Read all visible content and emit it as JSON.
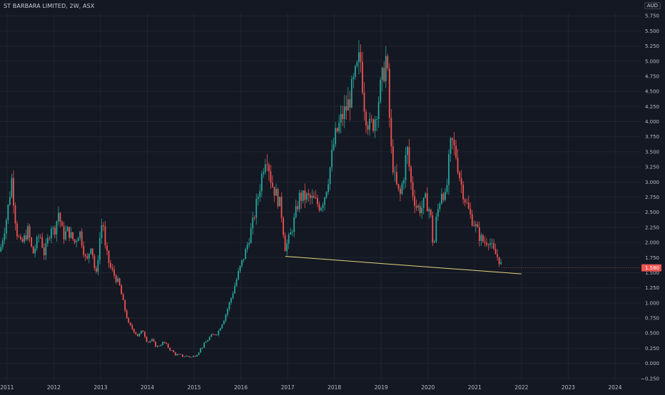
{
  "header": {
    "title": "ST BARBARA LIMITED, 2W, ASX",
    "currency": "AUD"
  },
  "colors": {
    "background": "#141823",
    "up": "#26a69a",
    "down": "#ef5350",
    "trendline": "#e6d47a",
    "grid": "#1f2430",
    "text": "#b8bcc6",
    "price_tag": "#ef5350"
  },
  "chart_data": {
    "type": "candlestick",
    "title": "ST BARBARA LIMITED, 2W, ASX",
    "yunit": "AUD",
    "ylim": [
      -0.3,
      5.8
    ],
    "xlim": [
      2010.85,
      2024.55
    ],
    "y_ticks": [
      "5.750",
      "5.500",
      "5.250",
      "5.000",
      "4.750",
      "4.500",
      "4.250",
      "4.000",
      "3.750",
      "3.500",
      "3.250",
      "3.000",
      "2.750",
      "2.500",
      "2.250",
      "2.000",
      "1.750",
      "1.500",
      "1.250",
      "1.000",
      "0.750",
      "0.500",
      "0.250",
      "0.000",
      "−0.250"
    ],
    "x_ticks": [
      "2011",
      "2012",
      "2013",
      "2014",
      "2015",
      "2016",
      "2017",
      "2018",
      "2019",
      "2020",
      "2021",
      "2022",
      "2023",
      "2024"
    ],
    "last_price": "1.580",
    "price_path": [
      [
        2010.85,
        1.85
      ],
      [
        2011.0,
        2.45
      ],
      [
        2011.1,
        3.05
      ],
      [
        2011.2,
        2.2
      ],
      [
        2011.3,
        1.95
      ],
      [
        2011.45,
        2.2
      ],
      [
        2011.55,
        1.8
      ],
      [
        2011.7,
        2.15
      ],
      [
        2011.8,
        1.8
      ],
      [
        2011.95,
        2.3
      ],
      [
        2012.0,
        2.15
      ],
      [
        2012.1,
        2.5
      ],
      [
        2012.2,
        2.1
      ],
      [
        2012.3,
        2.2
      ],
      [
        2012.45,
        2.0
      ],
      [
        2012.55,
        2.2
      ],
      [
        2012.7,
        1.65
      ],
      [
        2012.8,
        2.0
      ],
      [
        2012.9,
        1.4
      ],
      [
        2013.0,
        2.2
      ],
      [
        2013.05,
        2.4
      ],
      [
        2013.1,
        1.9
      ],
      [
        2013.2,
        1.6
      ],
      [
        2013.3,
        1.45
      ],
      [
        2013.4,
        1.3
      ],
      [
        2013.5,
        0.95
      ],
      [
        2013.6,
        0.65
      ],
      [
        2013.7,
        0.55
      ],
      [
        2013.8,
        0.45
      ],
      [
        2013.9,
        0.55
      ],
      [
        2014.0,
        0.35
      ],
      [
        2014.1,
        0.38
      ],
      [
        2014.2,
        0.27
      ],
      [
        2014.35,
        0.35
      ],
      [
        2014.5,
        0.22
      ],
      [
        2014.6,
        0.15
      ],
      [
        2014.75,
        0.12
      ],
      [
        2014.85,
        0.12
      ],
      [
        2014.95,
        0.1
      ],
      [
        2015.05,
        0.15
      ],
      [
        2015.2,
        0.3
      ],
      [
        2015.35,
        0.45
      ],
      [
        2015.5,
        0.5
      ],
      [
        2015.65,
        0.75
      ],
      [
        2015.8,
        1.1
      ],
      [
        2015.95,
        1.5
      ],
      [
        2016.1,
        1.85
      ],
      [
        2016.25,
        2.3
      ],
      [
        2016.4,
        2.9
      ],
      [
        2016.5,
        3.35
      ],
      [
        2016.55,
        3.5
      ],
      [
        2016.65,
        3.0
      ],
      [
        2016.75,
        2.8
      ],
      [
        2016.85,
        2.6
      ],
      [
        2016.95,
        1.9
      ],
      [
        2017.05,
        2.1
      ],
      [
        2017.15,
        2.4
      ],
      [
        2017.25,
        2.75
      ],
      [
        2017.4,
        2.75
      ],
      [
        2017.55,
        2.7
      ],
      [
        2017.7,
        2.6
      ],
      [
        2017.8,
        2.8
      ],
      [
        2017.9,
        3.2
      ],
      [
        2018.0,
        3.7
      ],
      [
        2018.15,
        4.05
      ],
      [
        2018.3,
        4.3
      ],
      [
        2018.4,
        4.6
      ],
      [
        2018.5,
        4.9
      ],
      [
        2018.55,
        5.1
      ],
      [
        2018.65,
        4.2
      ],
      [
        2018.75,
        3.9
      ],
      [
        2018.85,
        4.0
      ],
      [
        2018.95,
        4.4
      ],
      [
        2019.05,
        4.8
      ],
      [
        2019.1,
        5.05
      ],
      [
        2019.15,
        4.6
      ],
      [
        2019.2,
        3.6
      ],
      [
        2019.3,
        3.0
      ],
      [
        2019.4,
        2.75
      ],
      [
        2019.5,
        3.2
      ],
      [
        2019.55,
        3.6
      ],
      [
        2019.65,
        2.9
      ],
      [
        2019.75,
        2.6
      ],
      [
        2019.85,
        2.55
      ],
      [
        2019.95,
        2.7
      ],
      [
        2020.05,
        2.5
      ],
      [
        2020.12,
        1.85
      ],
      [
        2020.18,
        2.4
      ],
      [
        2020.3,
        2.9
      ],
      [
        2020.38,
        2.7
      ],
      [
        2020.45,
        3.35
      ],
      [
        2020.5,
        3.7
      ],
      [
        2020.6,
        3.45
      ],
      [
        2020.7,
        3.0
      ],
      [
        2020.8,
        2.7
      ],
      [
        2020.9,
        2.45
      ],
      [
        2021.0,
        2.3
      ],
      [
        2021.1,
        2.1
      ],
      [
        2021.2,
        2.0
      ],
      [
        2021.3,
        2.05
      ],
      [
        2021.4,
        1.85
      ],
      [
        2021.5,
        1.75
      ],
      [
        2021.58,
        1.6
      ]
    ],
    "trendline": [
      [
        2016.95,
        1.77
      ],
      [
        2022.0,
        1.48
      ]
    ]
  }
}
